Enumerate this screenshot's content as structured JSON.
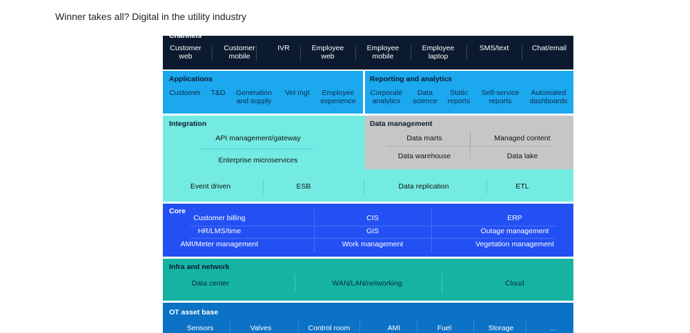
{
  "page_title": "Winner takes all? Digital in the utility industry",
  "colors": {
    "channels": "#0b1a2e",
    "applications": "#1ba8ee",
    "integration": "#74ebe2",
    "data_management": "#c6c6c6",
    "core": "#2350f2",
    "infra": "#16b3a3",
    "ot": "#0b72c6"
  },
  "channels": {
    "heading": "Channels",
    "items": [
      "Customer\nweb",
      "Customer\nmobile",
      "IVR",
      "Employee\nweb",
      "Employee\nmobile",
      "Employee\nlaptop",
      "SMS/text",
      "Chat/email"
    ]
  },
  "applications": {
    "heading": "Applications",
    "items": [
      "Customer",
      "T&D",
      "Generation\nand supply",
      "Vet mgt",
      "Employee\nexperience"
    ]
  },
  "reporting": {
    "heading": "Reporting and analytics",
    "items": [
      "Corporate\nanalytics",
      "Data\nscience",
      "Static\nreports",
      "Self-service\nreports",
      "Automated\ndashboards"
    ]
  },
  "integration": {
    "heading": "Integration",
    "items": [
      "API management/gateway",
      "Enterprise microservices"
    ],
    "row": [
      "Event driven",
      "ESB",
      "Data replication",
      "ETL"
    ]
  },
  "data_management": {
    "heading": "Data management",
    "items": [
      "Data marts",
      "Managed content",
      "Data warehouse",
      "Data lake"
    ]
  },
  "core": {
    "heading": "Core",
    "items": [
      "Customer billing",
      "CIS",
      "ERP",
      "HR/LMS/time",
      "GIS",
      "Outage management",
      "AMI/Meter management",
      "Work management",
      "Vegetation management"
    ]
  },
  "infra": {
    "heading": "Infra and network",
    "items": [
      "Data center",
      "WAN/LAN/networking",
      "Cloud"
    ]
  },
  "ot": {
    "heading": "OT asset base",
    "items": [
      "Sensors",
      "Valves",
      "Control room",
      "AMI",
      "Fuel",
      "Storage",
      "..."
    ]
  }
}
